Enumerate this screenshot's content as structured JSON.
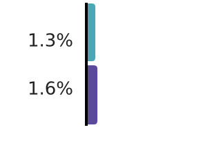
{
  "chart_data": {
    "type": "bar",
    "orientation": "horizontal",
    "categories": [
      null,
      null
    ],
    "series": [
      {
        "colors": [
          "#4aa8b6",
          "#5b4a9c"
        ],
        "values": [
          1.3,
          1.6
        ],
        "value_labels": [
          "1.3%",
          "1.6%"
        ]
      }
    ],
    "xlim": [
      0,
      10
    ]
  }
}
